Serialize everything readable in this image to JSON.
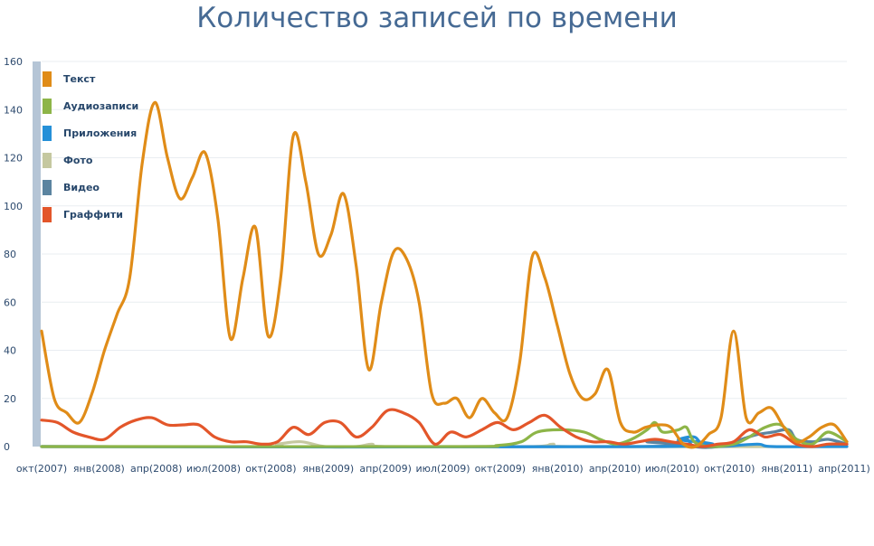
{
  "chart_data": {
    "type": "line",
    "title": "Количество записей по времени",
    "xlabel": "",
    "ylabel": "",
    "ylim": [
      0,
      160
    ],
    "yticks": [
      0,
      20,
      40,
      60,
      80,
      100,
      120,
      140,
      160
    ],
    "x_tick_labels": [
      "окт(2007)",
      "янв(2008)",
      "апр(2008)",
      "июл(2008)",
      "окт(2008)",
      "янв(2009)",
      "апр(2009)",
      "июл(2009)",
      "окт(2009)",
      "янв(2010)",
      "апр(2010)",
      "июл(2010)",
      "окт(2010)",
      "янв(2011)",
      "апр(2011)"
    ],
    "x_range_months": [
      0,
      43
    ],
    "grid": true,
    "legend_position": "top-left",
    "series": [
      {
        "name": "Текст",
        "color": "#e08c18",
        "points": [
          [
            0,
            48
          ],
          [
            0.8,
            20
          ],
          [
            1.6,
            14
          ],
          [
            2.4,
            10
          ],
          [
            3.2,
            22
          ],
          [
            4.0,
            40
          ],
          [
            4.8,
            55
          ],
          [
            5.6,
            70
          ],
          [
            6.4,
            118
          ],
          [
            7.2,
            143
          ],
          [
            8.0,
            120
          ],
          [
            8.8,
            103
          ],
          [
            9.6,
            112
          ],
          [
            10.4,
            122
          ],
          [
            11.2,
            95
          ],
          [
            12.0,
            45
          ],
          [
            12.8,
            70
          ],
          [
            13.6,
            91
          ],
          [
            14.4,
            46
          ],
          [
            15.2,
            70
          ],
          [
            16.0,
            129
          ],
          [
            16.8,
            110
          ],
          [
            17.6,
            80
          ],
          [
            18.4,
            88
          ],
          [
            19.2,
            105
          ],
          [
            20.0,
            75
          ],
          [
            20.8,
            32
          ],
          [
            21.6,
            60
          ],
          [
            22.4,
            81
          ],
          [
            23.2,
            78
          ],
          [
            24.0,
            60
          ],
          [
            24.8,
            22
          ],
          [
            25.6,
            18
          ],
          [
            26.4,
            20
          ],
          [
            27.2,
            12
          ],
          [
            28.0,
            20
          ],
          [
            28.8,
            14
          ],
          [
            29.6,
            12
          ],
          [
            30.4,
            35
          ],
          [
            31.2,
            79
          ],
          [
            32.0,
            70
          ],
          [
            32.8,
            50
          ],
          [
            33.6,
            30
          ],
          [
            34.4,
            20
          ],
          [
            35.2,
            22
          ],
          [
            36.0,
            32
          ],
          [
            36.8,
            10
          ],
          [
            37.6,
            6
          ],
          [
            38.4,
            8
          ],
          [
            39.2,
            9
          ],
          [
            40.0,
            8
          ],
          [
            40.8,
            1
          ],
          [
            41.6,
            0
          ],
          [
            42.4,
            5
          ],
          [
            43.2,
            12
          ],
          [
            44.0,
            48
          ],
          [
            44.8,
            12
          ],
          [
            45.6,
            14
          ],
          [
            46.4,
            16
          ],
          [
            47.2,
            8
          ],
          [
            48.0,
            2
          ],
          [
            48.8,
            4
          ],
          [
            49.6,
            8
          ],
          [
            50.4,
            9
          ],
          [
            51.2,
            2
          ]
        ]
      },
      {
        "name": "Аудиозаписи",
        "color": "#8db548",
        "points": [
          [
            0,
            0
          ],
          [
            26.0,
            0
          ],
          [
            29.0,
            0.5
          ],
          [
            30.5,
            2
          ],
          [
            31.5,
            6
          ],
          [
            33.0,
            7
          ],
          [
            34.5,
            6
          ],
          [
            35.5,
            3
          ],
          [
            36.5,
            1
          ],
          [
            37.5,
            3
          ],
          [
            38.5,
            7
          ],
          [
            39.0,
            10
          ],
          [
            39.5,
            6
          ],
          [
            40.5,
            7
          ],
          [
            41.0,
            8
          ],
          [
            41.5,
            2
          ],
          [
            42.5,
            0
          ],
          [
            44.0,
            1
          ],
          [
            45.0,
            4
          ],
          [
            46.0,
            8
          ],
          [
            47.0,
            9
          ],
          [
            48.0,
            3
          ],
          [
            49.0,
            1
          ],
          [
            50.0,
            6
          ],
          [
            51.2,
            2
          ]
        ]
      },
      {
        "name": "Приложения",
        "color": "#2590d8",
        "points": [
          [
            0,
            0
          ],
          [
            39.5,
            0
          ],
          [
            40.5,
            3
          ],
          [
            41.5,
            4
          ],
          [
            42.0,
            1
          ],
          [
            43.0,
            0
          ],
          [
            45.5,
            1
          ],
          [
            46.5,
            0
          ],
          [
            51.2,
            0
          ]
        ]
      },
      {
        "name": "Фото",
        "color": "#c5c8a0",
        "points": [
          [
            0,
            0
          ],
          [
            14.0,
            0
          ],
          [
            15.0,
            1
          ],
          [
            16.5,
            2
          ],
          [
            18.0,
            0
          ],
          [
            20.0,
            0
          ],
          [
            21.0,
            1
          ],
          [
            22.0,
            0
          ],
          [
            31.0,
            0
          ],
          [
            32.5,
            1
          ],
          [
            34.0,
            0
          ],
          [
            51.2,
            0
          ]
        ]
      },
      {
        "name": "Видео",
        "color": "#5b84a0",
        "points": [
          [
            0,
            0
          ],
          [
            37.5,
            0
          ],
          [
            38.5,
            2
          ],
          [
            39.5,
            2
          ],
          [
            40.0,
            1
          ],
          [
            41.0,
            3
          ],
          [
            41.5,
            0
          ],
          [
            43.0,
            0
          ],
          [
            44.5,
            3
          ],
          [
            45.5,
            5
          ],
          [
            46.5,
            6
          ],
          [
            47.5,
            7
          ],
          [
            48.0,
            3
          ],
          [
            49.0,
            2
          ],
          [
            50.0,
            3
          ],
          [
            51.2,
            1
          ]
        ]
      },
      {
        "name": "Граффити",
        "color": "#e3562a",
        "points": [
          [
            0,
            11
          ],
          [
            1.0,
            10
          ],
          [
            2.0,
            6
          ],
          [
            3.0,
            4
          ],
          [
            4.0,
            3
          ],
          [
            5.0,
            8
          ],
          [
            6.0,
            11
          ],
          [
            7.0,
            12
          ],
          [
            8.0,
            9
          ],
          [
            9.0,
            9
          ],
          [
            10.0,
            9
          ],
          [
            11.0,
            4
          ],
          [
            12.0,
            2
          ],
          [
            13.0,
            2
          ],
          [
            14.0,
            1
          ],
          [
            15.0,
            2
          ],
          [
            16.0,
            8
          ],
          [
            17.0,
            5
          ],
          [
            18.0,
            10
          ],
          [
            19.0,
            10
          ],
          [
            20.0,
            4
          ],
          [
            21.0,
            8
          ],
          [
            22.0,
            15
          ],
          [
            23.0,
            14
          ],
          [
            24.0,
            10
          ],
          [
            25.0,
            1
          ],
          [
            26.0,
            6
          ],
          [
            27.0,
            4
          ],
          [
            28.0,
            7
          ],
          [
            29.0,
            10
          ],
          [
            30.0,
            7
          ],
          [
            31.0,
            10
          ],
          [
            32.0,
            13
          ],
          [
            33.0,
            8
          ],
          [
            34.0,
            4
          ],
          [
            35.0,
            2
          ],
          [
            36.0,
            2
          ],
          [
            37.0,
            1
          ],
          [
            38.0,
            2
          ],
          [
            39.0,
            3
          ],
          [
            40.0,
            2
          ],
          [
            41.0,
            1
          ],
          [
            42.0,
            0
          ],
          [
            43.0,
            1
          ],
          [
            44.0,
            2
          ],
          [
            45.0,
            7
          ],
          [
            46.0,
            4
          ],
          [
            47.0,
            5
          ],
          [
            48.0,
            1
          ],
          [
            49.0,
            0
          ],
          [
            50.0,
            1
          ],
          [
            51.2,
            1
          ]
        ]
      }
    ]
  }
}
